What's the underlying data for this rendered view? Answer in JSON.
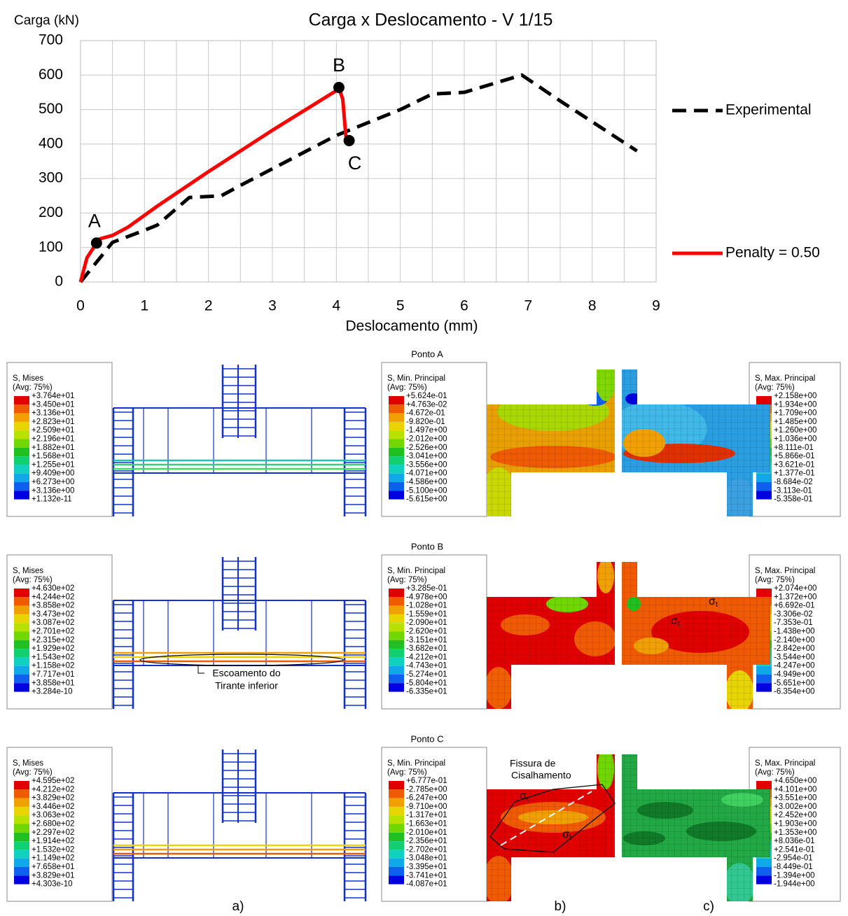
{
  "chart_data": {
    "type": "line",
    "title": "Carga x Deslocamento - V 1/15",
    "y_label": "Carga (kN)",
    "x_label": "Deslocamento (mm)",
    "xlim": [
      0,
      9
    ],
    "xticks": [
      0,
      1,
      2,
      3,
      4,
      5,
      6,
      7,
      8,
      9
    ],
    "minor_xticks": [
      0.5,
      1.5,
      2.5,
      3.5,
      4.5,
      5.5,
      6.5,
      7.5,
      8.5
    ],
    "ylim": [
      0,
      700
    ],
    "yticks": [
      0,
      100,
      200,
      300,
      400,
      500,
      600,
      700
    ],
    "grid": true,
    "legend": "right",
    "series": [
      {
        "name": "Experimental",
        "color": "#000000",
        "dashed": true,
        "x": [
          0,
          0.5,
          1.0,
          1.2,
          1.7,
          2.2,
          2.5,
          4.0,
          5.0,
          5.5,
          6.0,
          6.9,
          7.5,
          8.7
        ],
        "values": [
          0,
          115,
          150,
          165,
          245,
          250,
          280,
          425,
          500,
          545,
          550,
          600,
          525,
          380
        ]
      },
      {
        "name": "Penalty = 0.50",
        "color": "#ff0000",
        "dashed": false,
        "x": [
          0,
          0.1,
          0.25,
          0.3,
          0.5,
          0.75,
          1.2,
          2.0,
          3.0,
          4.0,
          4.04,
          4.1,
          4.15
        ],
        "values": [
          0,
          70,
          113,
          125,
          135,
          160,
          220,
          320,
          440,
          555,
          564,
          530,
          420
        ]
      }
    ],
    "annotations": [
      {
        "label": "A",
        "x": 0.25,
        "y": 113
      },
      {
        "label": "B",
        "x": 4.04,
        "y": 564
      },
      {
        "label": "C",
        "x": 4.2,
        "y": 410
      }
    ]
  },
  "panels": {
    "stress_symbol": "σ",
    "stress_subscript": "t",
    "crack_label": [
      "Fissura de",
      "Cisalhamento"
    ],
    "yield_label": [
      "Escoamento do",
      "Tirante inferior"
    ],
    "captions": [
      "a)",
      "b)",
      "c)"
    ],
    "rows": [
      {
        "title": "Ponto A",
        "mises": {
          "title": "S, Mises",
          "avg": "(Avg: 75%)",
          "labels": [
            "+3.764e+01",
            "+3.450e+01",
            "+3.136e+01",
            "+2.823e+01",
            "+2.509e+01",
            "+2.196e+01",
            "+1.882e+01",
            "+1.568e+01",
            "+1.255e+01",
            "+9.409e+00",
            "+6.273e+00",
            "+3.136e+00",
            "+1.132e-11"
          ]
        },
        "min": {
          "title": "S, Min. Principal",
          "avg": "(Avg: 75%)",
          "labels": [
            "+5.624e-01",
            "+4.763e-02",
            "-4.672e-01",
            "-9.820e-01",
            "-1.497e+00",
            "-2.012e+00",
            "-2.526e+00",
            "-3.041e+00",
            "-3.556e+00",
            "-4.071e+00",
            "-4.586e+00",
            "-5.100e+00",
            "-5.615e+00"
          ]
        },
        "max": {
          "title": "S, Max. Principal",
          "avg": "(Avg: 75%)",
          "labels": [
            "+2.158e+00",
            "+1.934e+00",
            "+1.709e+00",
            "+1.485e+00",
            "+1.260e+00",
            "+1.036e+00",
            "+8.111e-01",
            "+5.866e-01",
            "+3.621e-01",
            "+1.377e-01",
            "-8.684e-02",
            "-3.113e-01",
            "-5.358e-01"
          ]
        }
      },
      {
        "title": "Ponto B",
        "mises": {
          "title": "S, Mises",
          "avg": "(Avg: 75%)",
          "labels": [
            "+4.630e+02",
            "+4.244e+02",
            "+3.858e+02",
            "+3.473e+02",
            "+3.087e+02",
            "+2.701e+02",
            "+2.315e+02",
            "+1.929e+02",
            "+1.543e+02",
            "+1.158e+02",
            "+7.717e+01",
            "+3.858e+01",
            "+3.284e-10"
          ]
        },
        "min": {
          "title": "S, Min. Principal",
          "avg": "(Avg: 75%)",
          "labels": [
            "+3.285e-01",
            "-4.978e+00",
            "-1.028e+01",
            "-1.559e+01",
            "-2.090e+01",
            "-2.620e+01",
            "-3.151e+01",
            "-3.682e+01",
            "-4.212e+01",
            "-4.743e+01",
            "-5.274e+01",
            "-5.804e+01",
            "-6.335e+01"
          ]
        },
        "max": {
          "title": "S, Max. Principal",
          "avg": "(Avg: 75%)",
          "labels": [
            "+2.074e+00",
            "+1.372e+00",
            "+6.692e-01",
            "-3.306e-02",
            "-7.353e-01",
            "-1.438e+00",
            "-2.140e+00",
            "-2.842e+00",
            "-3.544e+00",
            "-4.247e+00",
            "-4.949e+00",
            "-5.651e+00",
            "-6.354e+00"
          ]
        }
      },
      {
        "title": "Ponto C",
        "mises": {
          "title": "S, Mises",
          "avg": "(Avg: 75%)",
          "labels": [
            "+4.595e+02",
            "+4.212e+02",
            "+3.829e+02",
            "+3.446e+02",
            "+3.063e+02",
            "+2.680e+02",
            "+2.297e+02",
            "+1.914e+02",
            "+1.532e+02",
            "+1.149e+02",
            "+7.658e+01",
            "+3.829e+01",
            "+4.303e-10"
          ]
        },
        "min": {
          "title": "S, Min. Principal",
          "avg": "(Avg: 75%)",
          "labels": [
            "+6.777e-01",
            "-2.785e+00",
            "-6.247e+00",
            "-9.710e+00",
            "-1.317e+01",
            "-1.663e+01",
            "-2.010e+01",
            "-2.356e+01",
            "-2.702e+01",
            "-3.048e+01",
            "-3.395e+01",
            "-3.741e+01",
            "-4.087e+01"
          ]
        },
        "max": {
          "title": "S, Max. Principal",
          "avg": "(Avg: 75%)",
          "labels": [
            "+4.650e+00",
            "+4.101e+00",
            "+3.551e+00",
            "+3.002e+00",
            "+2.452e+00",
            "+1.903e+00",
            "+1.353e+00",
            "+8.036e-01",
            "+2.541e-01",
            "-2.954e-01",
            "-8.449e-01",
            "-1.394e+00",
            "-1.944e+00"
          ]
        }
      }
    ]
  }
}
